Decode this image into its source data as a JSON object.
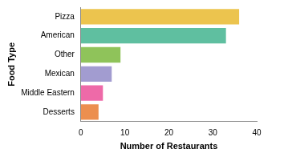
{
  "chart_data": {
    "type": "bar",
    "orientation": "horizontal",
    "categories": [
      "Pizza",
      "American",
      "Other",
      "Mexican",
      "Middle Eastern",
      "Desserts"
    ],
    "values": [
      36,
      33,
      9,
      7,
      5,
      4
    ],
    "colors": [
      "#ecc44e",
      "#5fbfa0",
      "#8fc35a",
      "#a29cd0",
      "#ee6aa8",
      "#ec8f4f"
    ],
    "x_label": "Number of Restaurants",
    "y_label": "Food Type",
    "xlim": [
      0,
      40
    ],
    "xticks": [
      0,
      10,
      20,
      30,
      40
    ],
    "grid": false
  }
}
